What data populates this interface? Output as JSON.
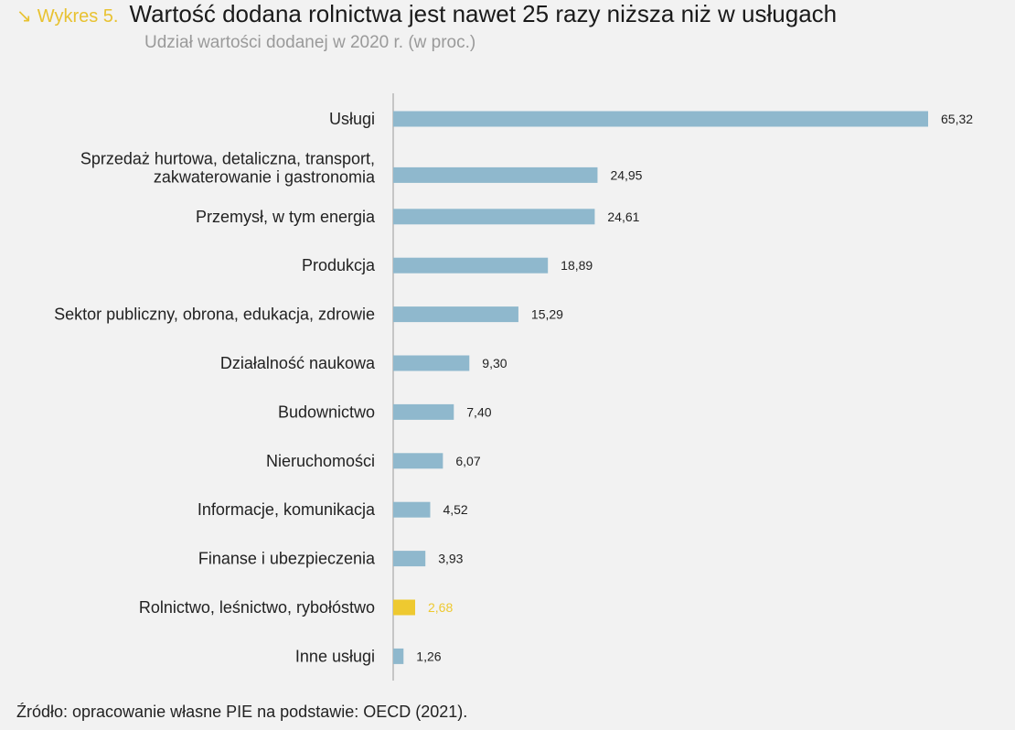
{
  "header": {
    "arrow": "↘",
    "figure_label": "Wykres 5.",
    "title": "Wartość dodana rolnictwa jest nawet 25 razy niższa niż w usługach",
    "subtitle": "Udział wartości dodanej w 2020 r. (w proc.)"
  },
  "source": "Źródło: opracowanie własne PIE na podstawie: OECD (2021).",
  "colors": {
    "bar": "#8fb8cd",
    "highlight": "#eec930",
    "axis": "#999999"
  },
  "chart_data": {
    "type": "bar",
    "orientation": "horizontal",
    "title": "Wartość dodana rolnictwa jest nawet 25 razy niższa niż w usługach",
    "subtitle": "Udział wartości dodanej w 2020 r. (w proc.)",
    "categories": [
      "Usługi",
      "Sprzedaż hurtowa, detaliczna, transport,\nzakwaterowanie i gastronomia",
      "Przemysł, w tym energia",
      "Produkcja",
      "Sektor publiczny, obrona, edukacja, zdrowie",
      "Działalność naukowa",
      "Budownictwo",
      "Nieruchomości",
      "Informacje, komunikacja",
      "Finanse i ubezpieczenia",
      "Rolnictwo, leśnictwo, rybołóstwo",
      "Inne usługi"
    ],
    "values": [
      65.32,
      24.95,
      24.61,
      18.89,
      15.29,
      9.3,
      7.4,
      6.07,
      4.52,
      3.93,
      2.68,
      1.26
    ],
    "value_labels": [
      "65,32",
      "24,95",
      "24,61",
      "18,89",
      "15,29",
      "9,30",
      "7,40",
      "6,07",
      "4,52",
      "3,93",
      "2,68",
      "1,26"
    ],
    "highlight_index": 10,
    "xlim": [
      0,
      65.32
    ],
    "grid": false,
    "legend": "none"
  }
}
